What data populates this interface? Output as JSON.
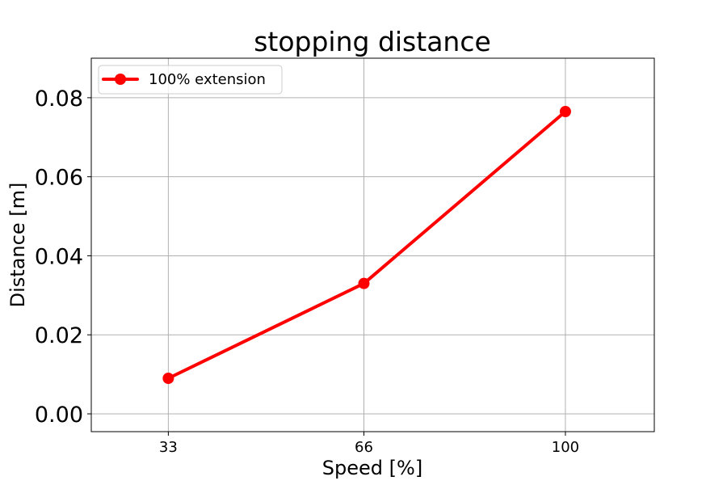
{
  "chart_data": {
    "type": "line",
    "title": "stopping distance",
    "xlabel": "Speed [%]",
    "ylabel": "Distance [m]",
    "x": [
      33,
      66,
      100
    ],
    "x_tick_labels": [
      "33",
      "66",
      "100"
    ],
    "xlim": [
      20,
      115
    ],
    "ylim": [
      -0.0045,
      0.09
    ],
    "y_ticks": [
      0.0,
      0.02,
      0.04,
      0.06,
      0.08
    ],
    "y_tick_labels": [
      "0.00",
      "0.02",
      "0.04",
      "0.06",
      "0.08"
    ],
    "grid": true,
    "legend_position": "top-left",
    "series": [
      {
        "name": "100% extension",
        "color": "#ff0000",
        "marker": "circle",
        "values": [
          0.009,
          0.033,
          0.0765
        ]
      }
    ]
  }
}
